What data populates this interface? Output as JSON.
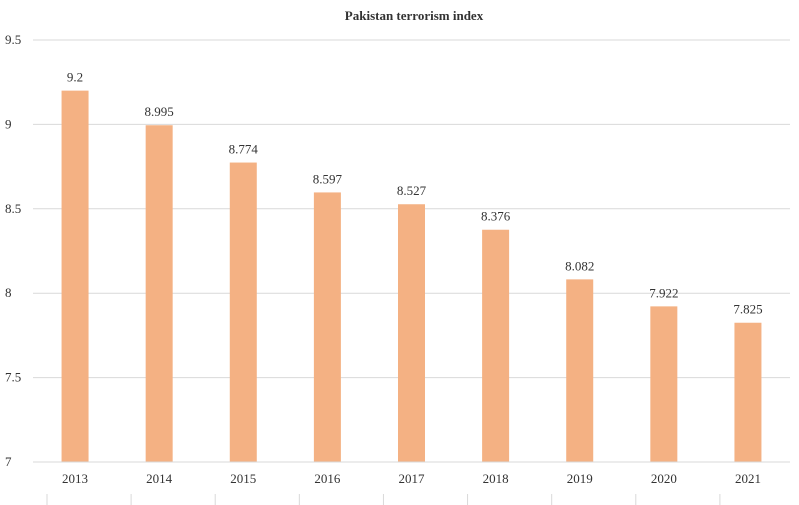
{
  "chart_data": {
    "type": "bar",
    "title": "Pakistan terrorism index",
    "xlabel": "",
    "ylabel": "",
    "categories": [
      "2013",
      "2014",
      "2015",
      "2016",
      "2017",
      "2018",
      "2019",
      "2020",
      "2021"
    ],
    "values": [
      9.2,
      8.995,
      8.774,
      8.597,
      8.527,
      8.376,
      8.082,
      7.922,
      7.825
    ],
    "value_labels": [
      "9.2",
      "8.995",
      "8.774",
      "8.597",
      "8.527",
      "8.376",
      "8.082",
      "7.922",
      "7.825"
    ],
    "ylim": [
      7,
      9.5
    ],
    "yticks": [
      "7",
      "7.5",
      "8",
      "8.5",
      "9",
      "9.5"
    ],
    "grid": true,
    "legend": "none",
    "bar_color": "#f4b183"
  }
}
